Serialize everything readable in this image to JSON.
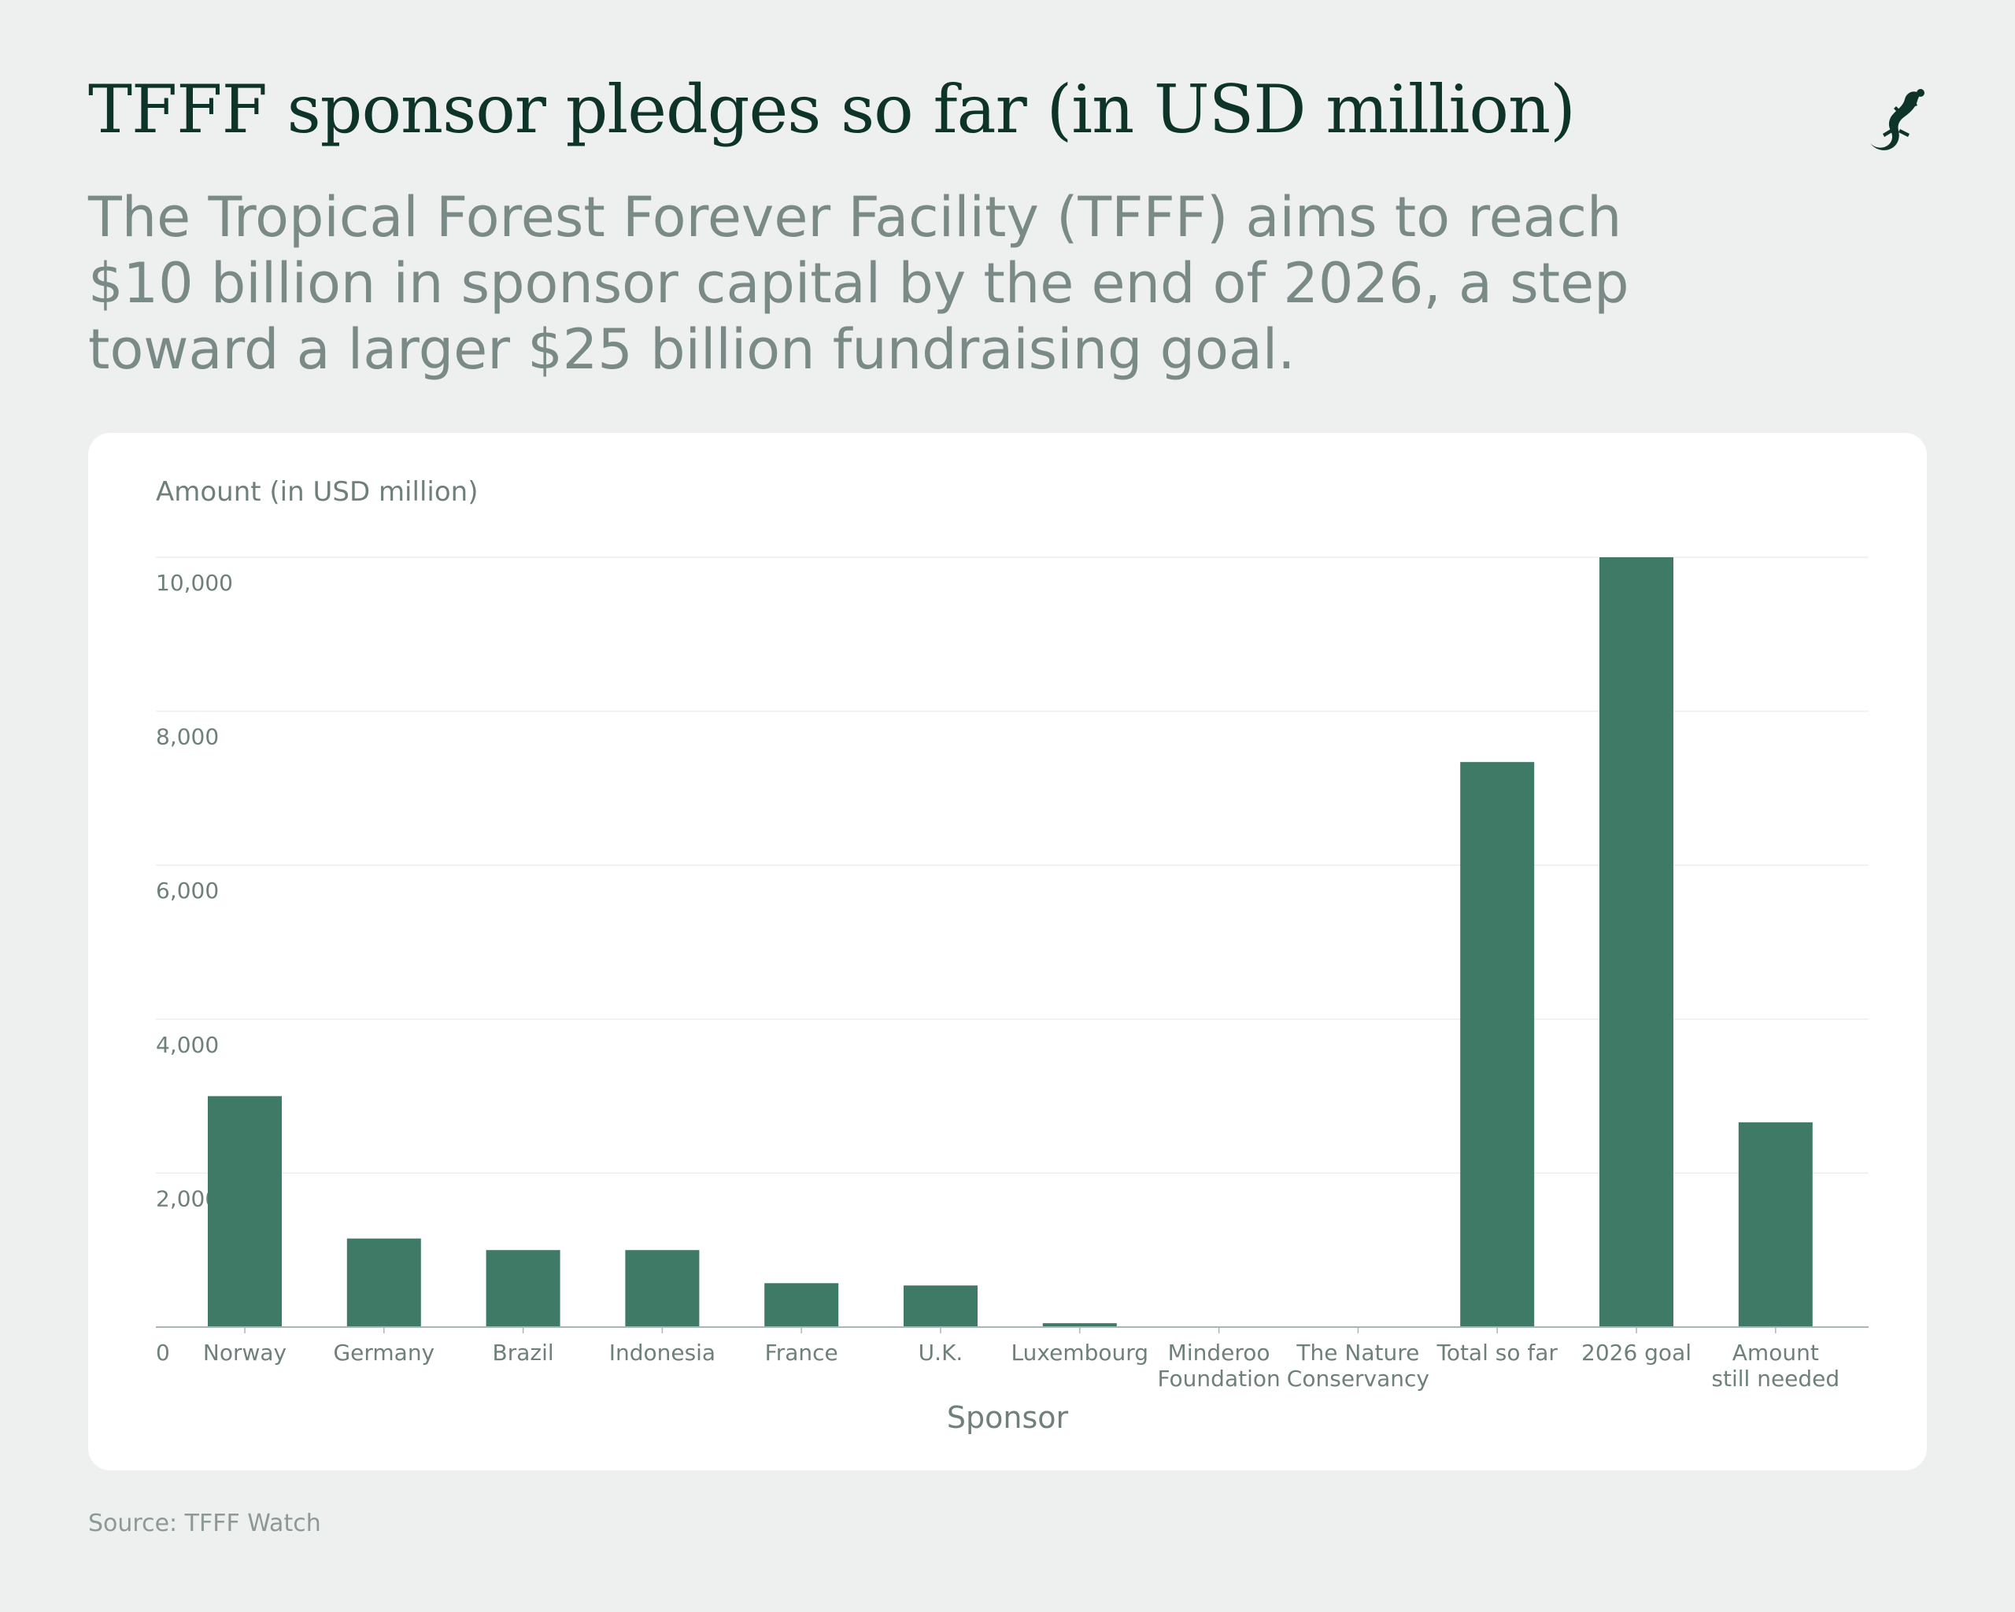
{
  "header": {
    "title": "TFFF sponsor pledges so far (in USD million)",
    "subtitle": "The Tropical Forest Forever Facility (TFFF) aims to reach $10 billion in sponsor capital by the end of 2026, a step toward a larger $25 billion fundraising goal."
  },
  "logo": {
    "icon": "gecko-icon"
  },
  "footer": {
    "source": "Source: TFFF Watch"
  },
  "colors": {
    "bar": "#3f7a66",
    "grid": "#eeeeee",
    "axis": "#a9b6b2",
    "text": "#6f807b"
  },
  "chart_data": {
    "type": "bar",
    "title": "TFFF sponsor pledges so far (in USD million)",
    "ylabel": "Amount (in USD million)",
    "xlabel": "Sponsor",
    "ylim": [
      0,
      10000
    ],
    "yticks": [
      0,
      2000,
      4000,
      6000,
      8000,
      10000
    ],
    "ytick_labels": [
      "0",
      "2,000",
      "4,000",
      "6,000",
      "8,000",
      "10,000"
    ],
    "grid": true,
    "categories": [
      "Norway",
      "Germany",
      "Brazil",
      "Indonesia",
      "France",
      "U.K.",
      "Luxembourg",
      "Minderoo Foundation",
      "The Nature Conservancy",
      "Total so far",
      "2026 goal",
      "Amount still needed"
    ],
    "category_lines": [
      [
        "Norway"
      ],
      [
        "Germany"
      ],
      [
        "Brazil"
      ],
      [
        "Indonesia"
      ],
      [
        "France"
      ],
      [
        "U.K."
      ],
      [
        "Luxembourg"
      ],
      [
        "Minderoo",
        "Foundation"
      ],
      [
        "The Nature",
        "Conservancy"
      ],
      [
        "Total so far"
      ],
      [
        "2026 goal"
      ],
      [
        "Amount",
        "still needed"
      ]
    ],
    "values": [
      3000,
      1150,
      1000,
      1000,
      570,
      540,
      50,
      10,
      5,
      7340,
      10000,
      2660
    ]
  }
}
